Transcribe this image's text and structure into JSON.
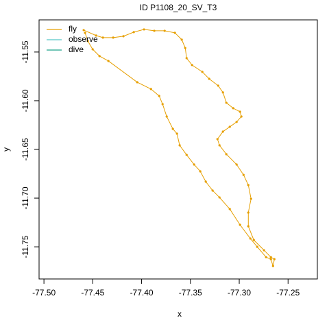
{
  "chart_data": {
    "type": "line",
    "title": "ID P1108_20_SV_T3",
    "xlabel": "x",
    "ylabel": "y",
    "xlim": [
      -77.505,
      -77.22
    ],
    "ylim": [
      -11.783,
      -11.517
    ],
    "xticks": [
      {
        "value": -77.5,
        "label": "-77.50"
      },
      -77.45,
      {
        "value": -77.4,
        "label": "-77.40"
      },
      -77.35,
      {
        "value": -77.3,
        "label": "-77.30"
      },
      -77.25
    ],
    "yticks": [
      -11.55,
      {
        "value": -11.6,
        "label": "-11.60"
      },
      -11.65,
      {
        "value": -11.7,
        "label": "-11.70"
      },
      -11.75
    ],
    "legend": "topleft",
    "series": [
      {
        "name": "fly",
        "color": "#E69F00",
        "x": [
          -77.4593,
          -77.4466,
          -77.4396,
          -77.4291,
          -77.4186,
          -77.408,
          -77.3975,
          -77.387,
          -77.3764,
          -77.3659,
          -77.3589,
          -77.3553,
          -77.3539,
          -77.3483,
          -77.3378,
          -77.3308,
          -77.3216,
          -77.3167,
          -77.3132,
          -77.3062,
          -77.2992,
          -77.2978,
          -77.3027,
          -77.3097,
          -77.3167,
          -77.3223,
          -77.3202,
          -77.3132,
          -77.3027,
          -77.2956,
          -77.2907,
          -77.2879,
          -77.2907,
          -77.2907,
          -77.2851,
          -77.2746,
          -77.2676,
          -77.264,
          -77.2654,
          -77.2676,
          -77.2725,
          -77.2816,
          -77.2886,
          -77.2992,
          -77.3097,
          -77.3202,
          -77.3273,
          -77.3343,
          -77.3399,
          -77.3462,
          -77.3539,
          -77.361,
          -77.3638,
          -77.368,
          -77.3743,
          -77.3785,
          -77.382,
          -77.3904,
          -77.4045,
          -77.434,
          -77.4431,
          -77.4501,
          -77.4551,
          -77.4579
        ],
        "y": [
          -11.5275,
          -11.5331,
          -11.5352,
          -11.5352,
          -11.5338,
          -11.5296,
          -11.5268,
          -11.5282,
          -11.5282,
          -11.5303,
          -11.5373,
          -11.5458,
          -11.5563,
          -11.5634,
          -11.5704,
          -11.5775,
          -11.5845,
          -11.5915,
          -11.6021,
          -11.6077,
          -11.6113,
          -11.6162,
          -11.6218,
          -11.6268,
          -11.6317,
          -11.6394,
          -11.6458,
          -11.6549,
          -11.6655,
          -11.6761,
          -11.6866,
          -11.7007,
          -11.7148,
          -11.7289,
          -11.743,
          -11.7535,
          -11.7606,
          -11.7627,
          -11.7697,
          -11.7627,
          -11.7606,
          -11.75,
          -11.7415,
          -11.7274,
          -11.7112,
          -11.6993,
          -11.6922,
          -11.6831,
          -11.6725,
          -11.6655,
          -11.6556,
          -11.6458,
          -11.6338,
          -11.6289,
          -11.6162,
          -11.6035,
          -11.5951,
          -11.588,
          -11.581,
          -11.5592,
          -11.5542,
          -11.5472,
          -11.5387,
          -11.5303
        ]
      },
      {
        "name": "observe",
        "color": "#56C8C8",
        "x": [],
        "y": []
      },
      {
        "name": "dive",
        "color": "#1FA38A",
        "x": [],
        "y": []
      }
    ]
  }
}
